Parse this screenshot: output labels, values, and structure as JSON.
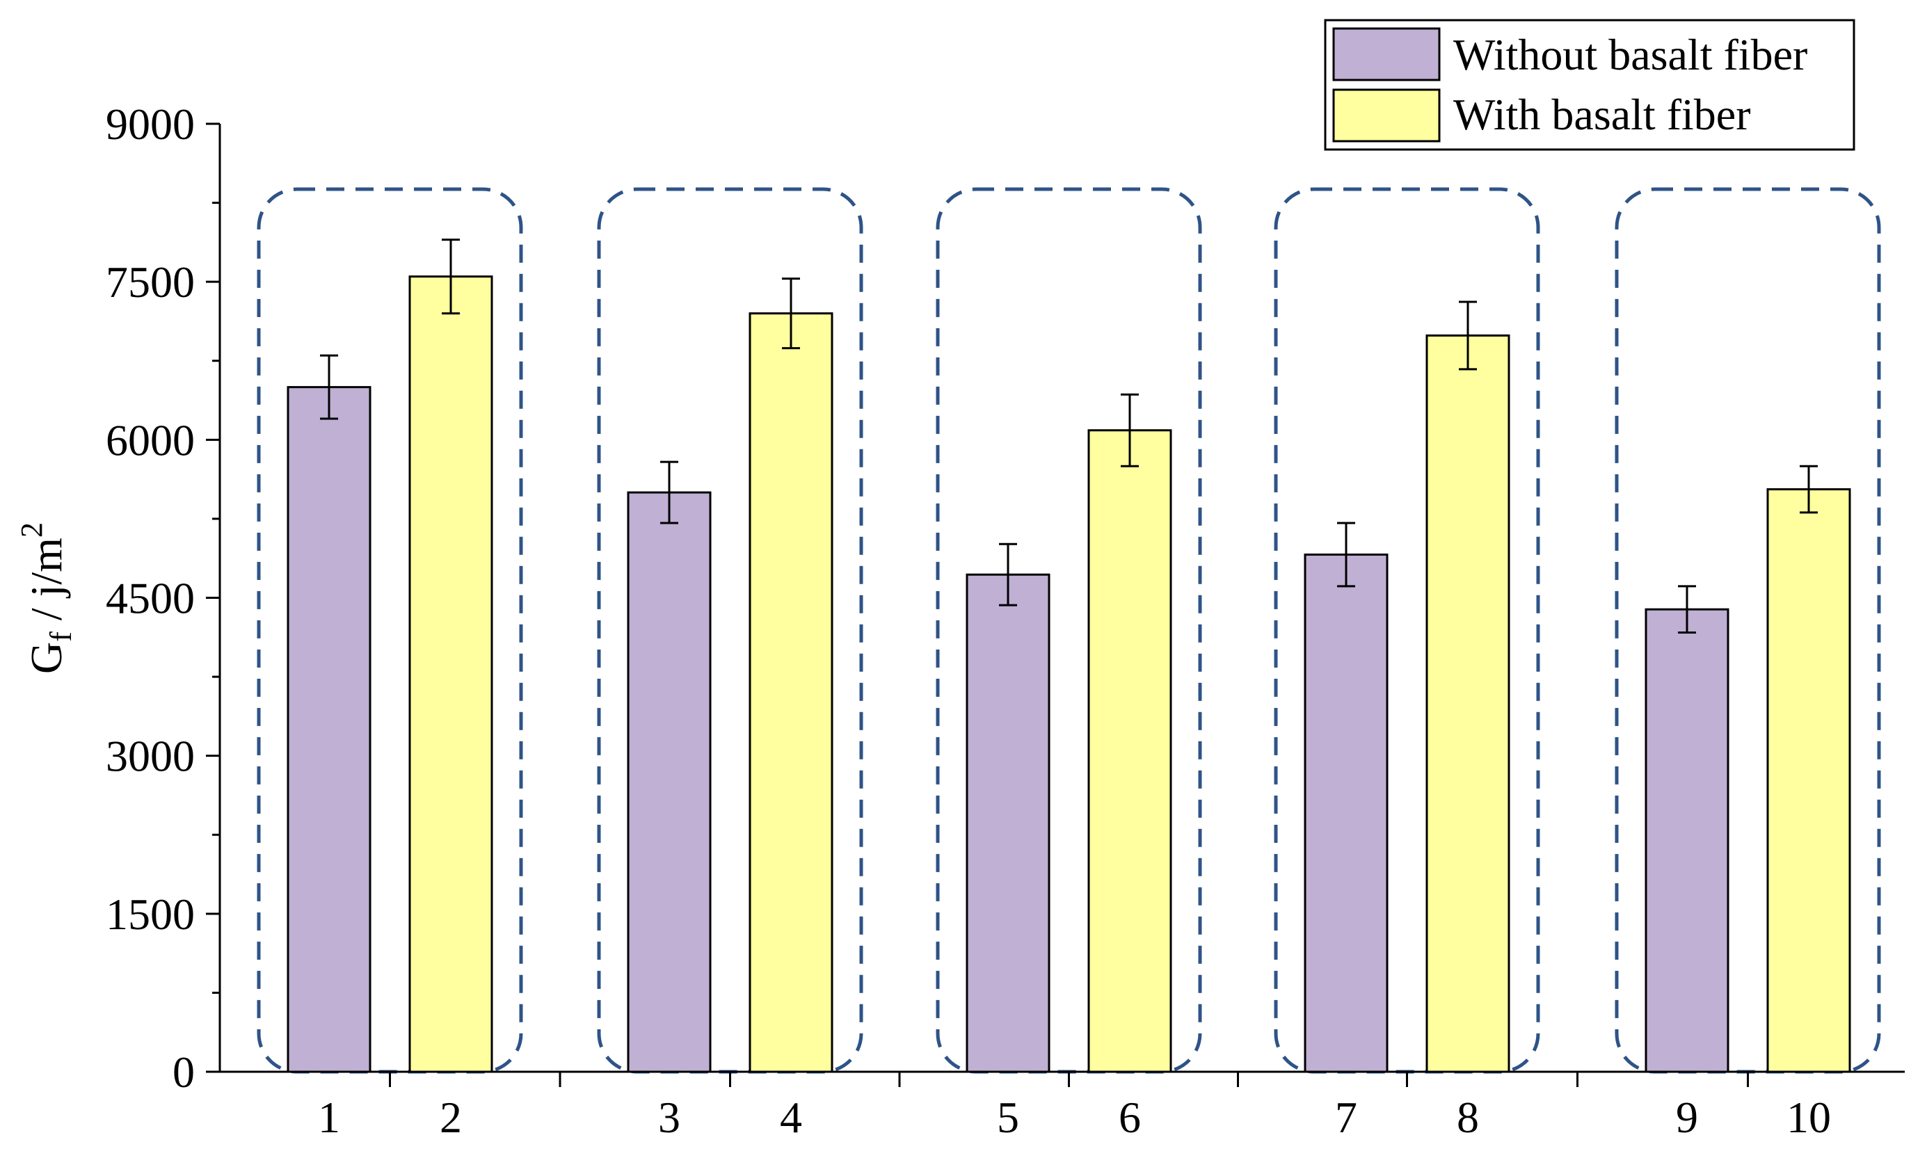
{
  "chart_data": {
    "type": "bar",
    "title": "",
    "xlabel": "",
    "ylabel": "G_f / j/m^2",
    "ylabel_main": "G",
    "ylabel_sub": "f",
    "ylabel_mid": " / j/m",
    "ylabel_sup": "2",
    "ylim": [
      0,
      9000
    ],
    "yticks": [
      "0",
      "1500",
      "3000",
      "4500",
      "6000",
      "7500",
      "9000"
    ],
    "legend": {
      "position": "top-right",
      "entries": [
        "Without basalt fiber",
        "With basalt fiber"
      ]
    },
    "groups": [
      {
        "bars": [
          {
            "label": "1",
            "series": 0,
            "value": 6500,
            "error": 300
          },
          {
            "label": "2",
            "series": 1,
            "value": 7550,
            "error": 350
          }
        ]
      },
      {
        "bars": [
          {
            "label": "3",
            "series": 0,
            "value": 5500,
            "error": 290
          },
          {
            "label": "4",
            "series": 1,
            "value": 7200,
            "error": 330
          }
        ]
      },
      {
        "bars": [
          {
            "label": "5",
            "series": 0,
            "value": 4720,
            "error": 290
          },
          {
            "label": "6",
            "series": 1,
            "value": 6090,
            "error": 340
          }
        ]
      },
      {
        "bars": [
          {
            "label": "7",
            "series": 0,
            "value": 4910,
            "error": 300
          },
          {
            "label": "8",
            "series": 1,
            "value": 6990,
            "error": 320
          }
        ]
      },
      {
        "bars": [
          {
            "label": "9",
            "series": 0,
            "value": 4390,
            "error": 220
          },
          {
            "label": "10",
            "series": 1,
            "value": 5530,
            "error": 220
          }
        ]
      }
    ],
    "colors": {
      "series": [
        "#bfb0d4",
        "#ffffa0"
      ],
      "dashed_box": "#2e5387",
      "axis": "#000000"
    }
  }
}
